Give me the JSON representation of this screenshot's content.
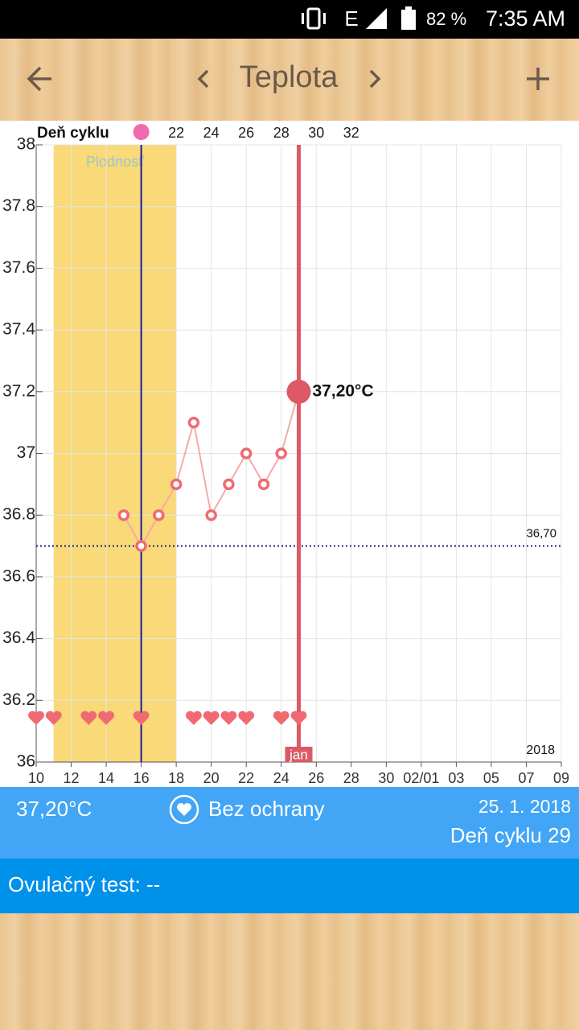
{
  "status_bar": {
    "network": "E",
    "battery": "82 %",
    "time": "7:35 AM"
  },
  "header": {
    "title": "Teplota"
  },
  "chart_data": {
    "type": "line",
    "x": [
      15,
      16,
      17,
      18,
      19,
      20,
      21,
      22,
      23,
      24,
      25
    ],
    "values": [
      36.8,
      36.7,
      36.8,
      36.9,
      37.1,
      36.8,
      36.9,
      37.0,
      36.9,
      37.0,
      37.2
    ],
    "color": "#f06a72",
    "xlim": [
      10,
      40
    ],
    "xticks": [
      10,
      12,
      14,
      16,
      18,
      20,
      22,
      24,
      26,
      28,
      30,
      {
        "value": 32,
        "label": "02/01"
      },
      {
        "value": 34,
        "label": "03"
      },
      {
        "value": 36,
        "label": "05"
      },
      {
        "value": 38,
        "label": "07"
      },
      {
        "value": 40,
        "label": "09"
      }
    ],
    "ylim": [
      36,
      38
    ],
    "yticks": [
      36,
      36.2,
      36.4,
      36.6,
      36.8,
      37,
      37.2,
      37.4,
      37.6,
      37.8,
      38
    ],
    "x2_label": "Deň cyklu",
    "x2ticks": [
      {
        "value": 18,
        "label": "22"
      },
      {
        "value": 20,
        "label": "24"
      },
      {
        "value": 22,
        "label": "26"
      },
      {
        "value": 24,
        "label": "28"
      },
      {
        "value": 26,
        "label": "30"
      },
      {
        "value": 28,
        "label": "32"
      }
    ],
    "grid": true,
    "fertile_window": {
      "label": "Plodnosť",
      "start": 11,
      "end": 18
    },
    "ovulation_day": 16,
    "coverline": {
      "value": 36.7,
      "label": "36,70"
    },
    "selected": {
      "x": 25,
      "value": 37.2,
      "label": "37,20°C",
      "month": "jan"
    },
    "year_label": "2018",
    "intercourse_days": [
      10,
      11,
      13,
      14,
      16,
      19,
      20,
      21,
      22,
      24,
      25
    ]
  },
  "info": {
    "temperature": "37,20°C",
    "protection": "Bez ochrany",
    "date": "25. 1. 2018",
    "cycle_day": "Deň cyklu 29"
  },
  "ovulation_test": {
    "label": "Ovulačný test:",
    "value": "--"
  }
}
